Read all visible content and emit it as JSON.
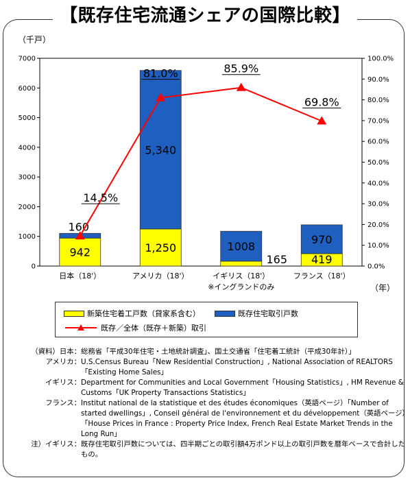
{
  "title": "【既存住宅流通シェアの国際比較】",
  "unit_left": "（千戸）",
  "unit_x": "（年）",
  "chart_data": {
    "type": "bar",
    "stacked": true,
    "categories": [
      "日本（18'）",
      "アメリカ（18'）",
      "イギリス（18'）",
      "フランス（18'）"
    ],
    "category_note": "※イングランドのみ",
    "series": [
      {
        "name": "新築住宅着工戸数（貸家系含む）",
        "values": [
          942,
          1250,
          165,
          419
        ],
        "labels": [
          "942",
          "1,250",
          "165",
          "419"
        ],
        "color": "#ffff00"
      },
      {
        "name": "既存住宅取引戸数",
        "values": [
          160,
          5340,
          1008,
          970
        ],
        "labels": [
          "160",
          "5,340",
          "1008",
          "970"
        ],
        "color": "#1f5fbf"
      }
    ],
    "line_series": {
      "name": "既存／全体（既存＋新築）取引",
      "values": [
        14.5,
        81.0,
        85.9,
        69.8
      ],
      "labels": [
        "14.5%",
        "81.0%",
        "85.9%",
        "69.8%"
      ],
      "color": "#ff0000"
    },
    "y_left": {
      "min": 0,
      "max": 7000,
      "ticks": [
        "0",
        "1000",
        "2000",
        "3000",
        "4000",
        "5000",
        "6000",
        "7000"
      ]
    },
    "y_right": {
      "min": 0,
      "max": 100,
      "ticks": [
        "0.0%",
        "10.0%",
        "20.0%",
        "30.0%",
        "40.0%",
        "50.0%",
        "60.0%",
        "70.0%",
        "80.0%",
        "90.0%",
        "100.0%"
      ]
    },
    "legend_placement": "bottom"
  },
  "notes": [
    {
      "label": "（資料）日本：",
      "text": "総務省「平成30年住宅・土地統計調査」、国土交通省「住宅着工統計（平成30年計）」"
    },
    {
      "label": "アメリカ：",
      "text": "U.S.Census Bureau「New Residential Construction」, National Association of REALTORS「Existing Home Sales」"
    },
    {
      "label": "イギリス：",
      "text": "Department for Communities and Local Government「Housing Statistics」, HM Revenue & Customs「UK Property Transactions Statistics」"
    },
    {
      "label": "フランス：",
      "text": "Institut national de la statistique et des études économiques（英語ページ）「Number of started dwellings」, Conseil général de l'environnement et du développement（英語ページ）「House Prices in France : Property Price Index, French Real Estate Market Trends in the Long Run」"
    },
    {
      "label": "注）イギリス：",
      "text": "既存住宅取引戸数については、四半期ごとの取引額4万ポンド以上の取引戸数を暦年ベースで合計したもの。"
    }
  ]
}
